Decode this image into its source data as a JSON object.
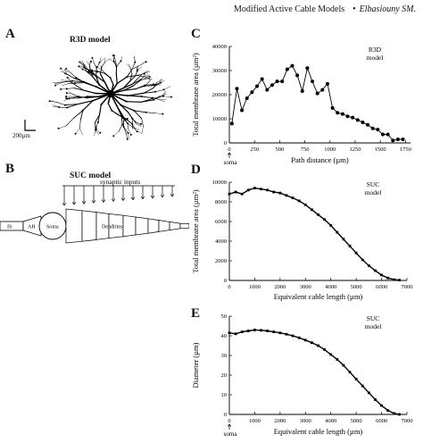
{
  "header": {
    "title": "Modified Active Cable Models",
    "separator": "•",
    "authors": "Elbasiouny SM."
  },
  "panels": {
    "A": {
      "letter": "A",
      "title": "R3D model",
      "scalebar": "200µm"
    },
    "B": {
      "letter": "B",
      "title": "SUC model",
      "labels": {
        "synaptic": "synaptic inputs",
        "is": "IS",
        "ah": "AH",
        "soma": "Soma",
        "dendrites": "Dendrites"
      }
    },
    "C": {
      "letter": "C"
    },
    "D": {
      "letter": "D"
    },
    "E": {
      "letter": "E"
    }
  },
  "chart_data": [
    {
      "panel": "C",
      "type": "line",
      "xlabel": "Path distance (µm)",
      "ylabel": "Total membrane area (µm²)",
      "annotation": "R3D\nmodel",
      "xticks": [
        0,
        250,
        500,
        750,
        1000,
        1250,
        1500,
        1750
      ],
      "yticks": [
        0,
        10000,
        20000,
        30000,
        40000
      ],
      "xlim": [
        0,
        1800
      ],
      "ylim": [
        0,
        40000
      ],
      "soma_marker": "soma",
      "x": [
        25,
        75,
        125,
        175,
        225,
        275,
        325,
        375,
        425,
        475,
        525,
        575,
        625,
        675,
        725,
        775,
        825,
        875,
        925,
        975,
        1025,
        1075,
        1125,
        1175,
        1225,
        1275,
        1325,
        1375,
        1425,
        1475,
        1525,
        1575,
        1625,
        1675,
        1725
      ],
      "y": [
        8000,
        22500,
        13500,
        18500,
        21000,
        23500,
        26500,
        22000,
        24000,
        25500,
        25500,
        30500,
        32000,
        28000,
        21500,
        31000,
        25500,
        20500,
        22000,
        24500,
        14500,
        12500,
        12000,
        11000,
        10500,
        9500,
        8500,
        7500,
        6000,
        5500,
        3500,
        3500,
        1000,
        1500,
        1500
      ]
    },
    {
      "panel": "D",
      "type": "line",
      "xlabel": "Equivalent cable length (µm)",
      "ylabel": "Total membrane area (µm²)",
      "annotation": "SUC\nmodel",
      "xticks": [
        0,
        1000,
        2000,
        3000,
        4000,
        5000,
        6000,
        7000
      ],
      "yticks": [
        0,
        2000,
        4000,
        6000,
        8000,
        10000
      ],
      "xlim": [
        0,
        7000
      ],
      "ylim": [
        0,
        10000
      ],
      "x": [
        0,
        250,
        500,
        750,
        1000,
        1250,
        1500,
        1750,
        2000,
        2250,
        2500,
        2750,
        3000,
        3250,
        3500,
        3750,
        4000,
        4250,
        4500,
        4750,
        5000,
        5250,
        5500,
        5750,
        6000,
        6250,
        6500,
        6700
      ],
      "y": [
        8800,
        9000,
        8800,
        9200,
        9400,
        9300,
        9200,
        9000,
        8900,
        8650,
        8400,
        8100,
        7700,
        7200,
        6700,
        6200,
        5600,
        4900,
        4200,
        3500,
        2800,
        2100,
        1500,
        1000,
        550,
        250,
        80,
        30
      ]
    },
    {
      "panel": "E",
      "type": "line",
      "xlabel": "Equivalent cable length (µm)",
      "ylabel": "Diameter (µm)",
      "annotation": "SUC\nmodel",
      "xticks": [
        0,
        1000,
        2000,
        3000,
        4000,
        5000,
        6000,
        7000
      ],
      "yticks": [
        0,
        10,
        20,
        30,
        40,
        50
      ],
      "xlim": [
        0,
        7000
      ],
      "ylim": [
        0,
        50
      ],
      "soma_marker": "soma",
      "x": [
        0,
        250,
        500,
        750,
        1000,
        1250,
        1500,
        1750,
        2000,
        2250,
        2500,
        2750,
        3000,
        3250,
        3500,
        3750,
        4000,
        4250,
        4500,
        4750,
        5000,
        5250,
        5500,
        5750,
        6000,
        6250,
        6500,
        6700
      ],
      "y": [
        41.5,
        41,
        42,
        42.5,
        43,
        42.8,
        42.5,
        42,
        41.5,
        40.8,
        40,
        39,
        37.8,
        36.5,
        35,
        33,
        30.5,
        28,
        25,
        21.5,
        18,
        14.5,
        11,
        7.5,
        4.5,
        2,
        0.5,
        0
      ]
    }
  ]
}
